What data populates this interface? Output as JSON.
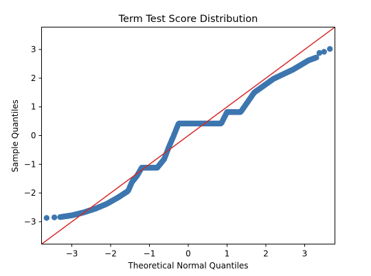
{
  "chart_data": {
    "type": "scatter",
    "title": "Term Test Score Distribution",
    "xlabel": "Theoretical Normal Quantiles",
    "ylabel": "Sample Quantiles",
    "xlim": [
      -3.78,
      3.78
    ],
    "ylim": [
      -3.78,
      3.78
    ],
    "xticks": [
      -3,
      -2,
      -1,
      0,
      1,
      2,
      3
    ],
    "yticks": [
      -3,
      -2,
      -1,
      0,
      1,
      2,
      3
    ],
    "xtick_labels": [
      "−3",
      "−2",
      "−1",
      "0",
      "1",
      "2",
      "3"
    ],
    "ytick_labels": [
      "−3",
      "−2",
      "−1",
      "0",
      "1",
      "2",
      "3"
    ],
    "grid": false,
    "reference_line": {
      "slope": 1,
      "intercept": 0,
      "color": "#d62728"
    },
    "point_color": "#3d76af",
    "outliers": [
      {
        "x": -3.65,
        "y": -2.87
      },
      {
        "x": -3.45,
        "y": -2.85
      },
      {
        "x": 3.38,
        "y": 2.88
      },
      {
        "x": 3.5,
        "y": 2.92
      },
      {
        "x": 3.65,
        "y": 3.02
      }
    ],
    "curve": [
      {
        "x": -3.3,
        "y": -2.84
      },
      {
        "x": -3.0,
        "y": -2.78
      },
      {
        "x": -2.7,
        "y": -2.68
      },
      {
        "x": -2.4,
        "y": -2.55
      },
      {
        "x": -2.1,
        "y": -2.38
      },
      {
        "x": -1.8,
        "y": -2.15
      },
      {
        "x": -1.55,
        "y": -1.93
      },
      {
        "x": -1.45,
        "y": -1.62
      },
      {
        "x": -1.32,
        "y": -1.4
      },
      {
        "x": -1.2,
        "y": -1.12
      },
      {
        "x": -0.8,
        "y": -1.12
      },
      {
        "x": -0.62,
        "y": -0.82
      },
      {
        "x": -0.5,
        "y": -0.4
      },
      {
        "x": -0.38,
        "y": -0.02
      },
      {
        "x": -0.25,
        "y": 0.42
      },
      {
        "x": 0.85,
        "y": 0.42
      },
      {
        "x": 1.0,
        "y": 0.82
      },
      {
        "x": 1.35,
        "y": 0.82
      },
      {
        "x": 1.7,
        "y": 1.5
      },
      {
        "x": 2.2,
        "y": 1.98
      },
      {
        "x": 2.7,
        "y": 2.3
      },
      {
        "x": 3.1,
        "y": 2.62
      },
      {
        "x": 3.3,
        "y": 2.72
      }
    ]
  }
}
